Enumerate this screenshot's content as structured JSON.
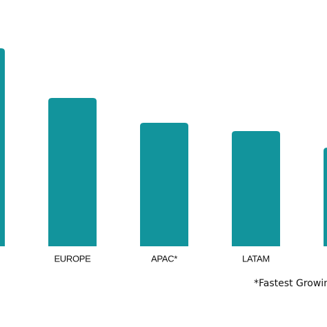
{
  "chart_data": {
    "type": "bar",
    "categories": [
      null,
      "EUROPE",
      "APAC*",
      "LATAM",
      null
    ],
    "values": [
      287,
      215,
      179,
      167,
      143
    ],
    "color": "#12949c",
    "ylim": [
      0,
      300
    ],
    "annotation": "*Fastest Growing"
  }
}
